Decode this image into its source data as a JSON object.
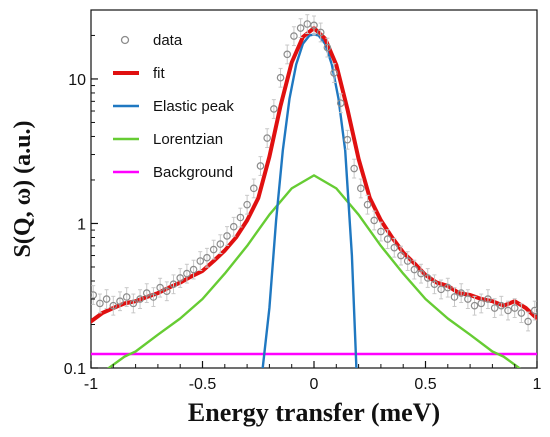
{
  "chart_data": {
    "type": "line",
    "xlabel": "Energy transfer (meV)",
    "ylabel": "S(Q, ω) (a.u.)",
    "xlim": [
      -1.0,
      1.0
    ],
    "ylim": [
      0.1,
      30
    ],
    "yscale": "log",
    "x_ticks": [
      -1,
      -0.5,
      0,
      0.5,
      1
    ],
    "x_tick_labels": [
      "-1",
      "-0.5",
      "0",
      "0.5",
      "1"
    ],
    "y_ticks": [
      0.1,
      1,
      10
    ],
    "y_tick_labels": [
      "0.1",
      "1",
      "10"
    ],
    "legend_position": "top-left",
    "series": [
      {
        "name": "data",
        "kind": "scatter",
        "color": "#8c8c8c",
        "x": [
          -0.99,
          -0.96,
          -0.93,
          -0.9,
          -0.87,
          -0.84,
          -0.81,
          -0.78,
          -0.75,
          -0.72,
          -0.69,
          -0.66,
          -0.63,
          -0.6,
          -0.57,
          -0.54,
          -0.51,
          -0.48,
          -0.45,
          -0.42,
          -0.39,
          -0.36,
          -0.33,
          -0.3,
          -0.27,
          -0.24,
          -0.21,
          -0.18,
          -0.15,
          -0.12,
          -0.09,
          -0.06,
          -0.03,
          0.0,
          0.03,
          0.06,
          0.09,
          0.12,
          0.15,
          0.18,
          0.21,
          0.24,
          0.27,
          0.3,
          0.33,
          0.36,
          0.39,
          0.42,
          0.45,
          0.48,
          0.51,
          0.54,
          0.57,
          0.6,
          0.63,
          0.66,
          0.69,
          0.72,
          0.75,
          0.78,
          0.81,
          0.84,
          0.87,
          0.9,
          0.93,
          0.96,
          0.99
        ],
        "y": [
          0.32,
          0.28,
          0.3,
          0.27,
          0.29,
          0.31,
          0.28,
          0.3,
          0.33,
          0.31,
          0.36,
          0.34,
          0.38,
          0.42,
          0.45,
          0.48,
          0.55,
          0.58,
          0.66,
          0.72,
          0.82,
          0.95,
          1.1,
          1.35,
          1.75,
          2.5,
          3.9,
          6.2,
          10.2,
          14.8,
          19.8,
          22.5,
          24.0,
          23.5,
          21.0,
          16.5,
          11.0,
          6.8,
          3.8,
          2.4,
          1.75,
          1.35,
          1.05,
          0.88,
          0.78,
          0.68,
          0.6,
          0.55,
          0.48,
          0.45,
          0.42,
          0.38,
          0.35,
          0.36,
          0.31,
          0.33,
          0.3,
          0.27,
          0.28,
          0.3,
          0.26,
          0.27,
          0.25,
          0.26,
          0.24,
          0.21,
          0.25
        ]
      },
      {
        "name": "fit",
        "kind": "line",
        "color": "#e01010",
        "x": [
          -1.0,
          -0.95,
          -0.9,
          -0.85,
          -0.8,
          -0.75,
          -0.7,
          -0.65,
          -0.6,
          -0.55,
          -0.5,
          -0.45,
          -0.4,
          -0.35,
          -0.3,
          -0.25,
          -0.2,
          -0.15,
          -0.1,
          -0.05,
          0.0,
          0.05,
          0.1,
          0.15,
          0.2,
          0.25,
          0.3,
          0.35,
          0.4,
          0.45,
          0.5,
          0.55,
          0.6,
          0.65,
          0.7,
          0.75,
          0.8,
          0.85,
          0.9,
          0.95,
          1.0
        ],
        "y": [
          0.21,
          0.24,
          0.26,
          0.28,
          0.29,
          0.31,
          0.33,
          0.36,
          0.39,
          0.43,
          0.47,
          0.55,
          0.65,
          0.8,
          1.05,
          1.5,
          2.9,
          6.5,
          13.0,
          19.5,
          22.5,
          19.0,
          12.5,
          6.2,
          2.8,
          1.5,
          1.05,
          0.8,
          0.63,
          0.53,
          0.44,
          0.39,
          0.37,
          0.33,
          0.32,
          0.3,
          0.29,
          0.27,
          0.29,
          0.26,
          0.22
        ]
      },
      {
        "name": "Elastic peak",
        "kind": "line",
        "color": "#1f78c1",
        "x": [
          -0.23,
          -0.2,
          -0.17,
          -0.14,
          -0.11,
          -0.08,
          -0.05,
          -0.02,
          0.0,
          0.02,
          0.05,
          0.08,
          0.11,
          0.14,
          0.17,
          0.19
        ],
        "y": [
          0.1,
          0.26,
          1.05,
          3.2,
          7.3,
          12.6,
          17.5,
          20.0,
          20.3,
          20.0,
          17.5,
          12.6,
          7.3,
          3.2,
          0.6,
          0.1
        ]
      },
      {
        "name": "Lorentzian",
        "kind": "line",
        "color": "#66cc33",
        "x": [
          -0.92,
          -0.85,
          -0.8,
          -0.7,
          -0.6,
          -0.5,
          -0.4,
          -0.3,
          -0.2,
          -0.1,
          0.0,
          0.1,
          0.2,
          0.3,
          0.4,
          0.5,
          0.6,
          0.7,
          0.8,
          0.85,
          0.92
        ],
        "y": [
          0.1,
          0.12,
          0.13,
          0.17,
          0.22,
          0.3,
          0.45,
          0.7,
          1.15,
          1.75,
          2.15,
          1.75,
          1.15,
          0.7,
          0.45,
          0.3,
          0.22,
          0.17,
          0.13,
          0.12,
          0.1
        ]
      },
      {
        "name": "Background",
        "kind": "line",
        "color": "#ff00ff",
        "x": [
          -1.0,
          1.0
        ],
        "y": [
          0.125,
          0.125
        ]
      }
    ]
  }
}
